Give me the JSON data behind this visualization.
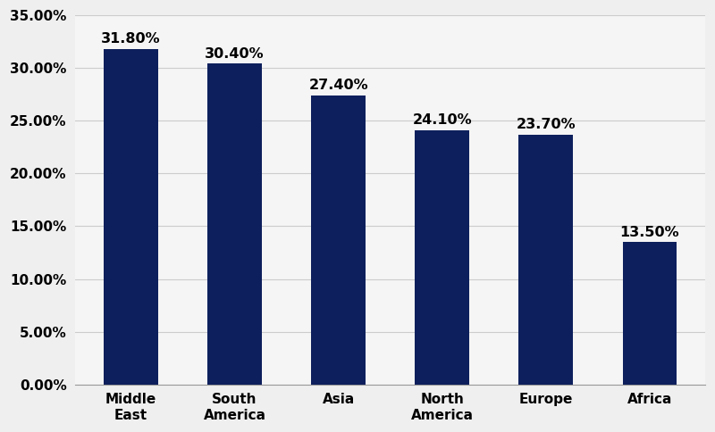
{
  "categories": [
    "Middle\nEast",
    "South\nAmerica",
    "Asia",
    "North\nAmerica",
    "Europe",
    "Africa"
  ],
  "values": [
    31.8,
    30.4,
    27.4,
    24.1,
    23.7,
    13.5
  ],
  "labels": [
    "31.80%",
    "30.40%",
    "27.40%",
    "24.10%",
    "23.70%",
    "13.50%"
  ],
  "bar_color": "#0d1f5c",
  "background_color": "#efefef",
  "plot_bg_color": "#f5f5f5",
  "grid_color": "#cccccc",
  "ylim": [
    0,
    35
  ],
  "yticks": [
    0,
    5,
    10,
    15,
    20,
    25,
    30,
    35
  ],
  "ytick_labels": [
    "0.00%",
    "5.00%",
    "10.00%",
    "15.00%",
    "20.00%",
    "25.00%",
    "30.00%",
    "35.00%"
  ],
  "label_fontsize": 11.5,
  "tick_fontsize": 11,
  "bar_width": 0.52
}
